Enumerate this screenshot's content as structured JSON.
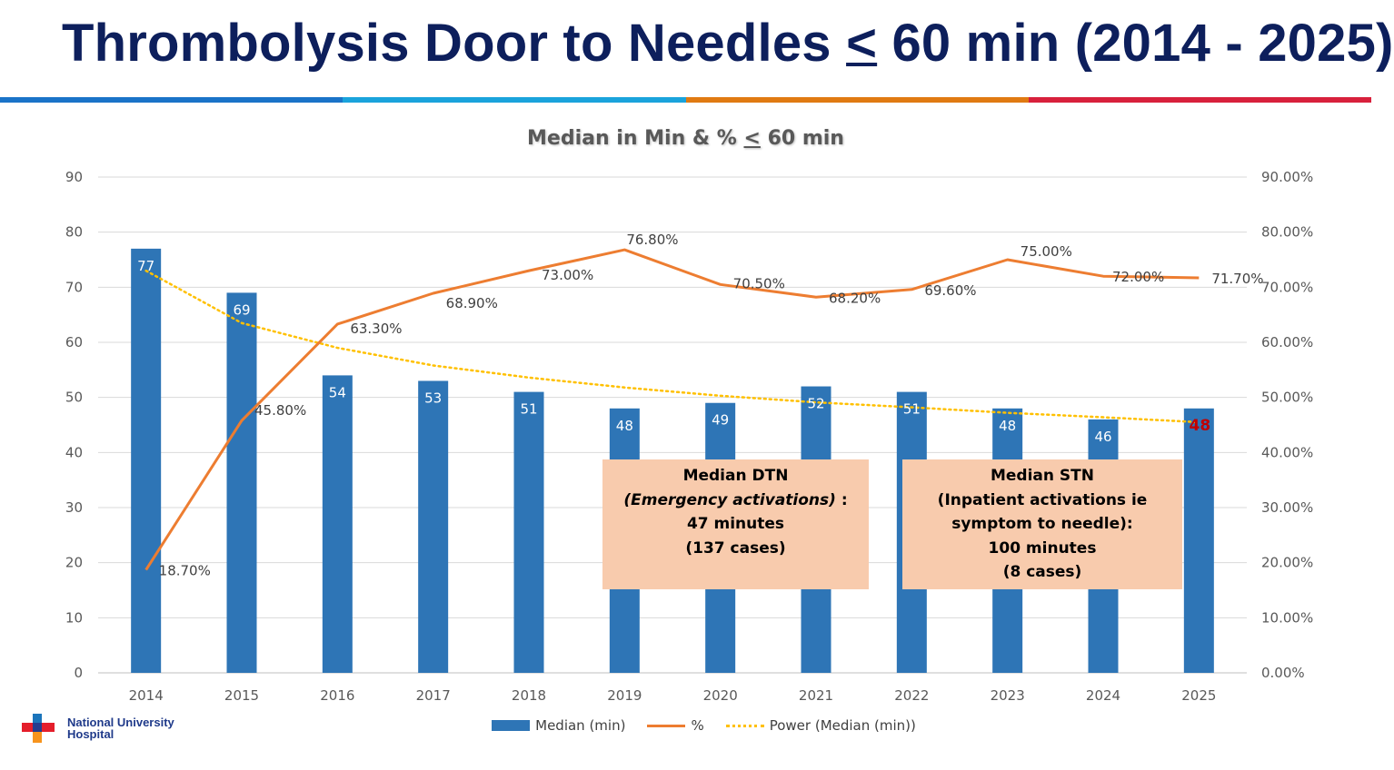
{
  "slide": {
    "title_before": "Thrombolysis Door to Needles ",
    "title_symbol": "<",
    "title_after": " 60 min (2014 - 2025)",
    "stripe_colors": [
      "#1a73c8",
      "#1aa3dc",
      "#e07a12",
      "#d8203c"
    ]
  },
  "chart_data": {
    "type": "bar",
    "title_before": "Median in Min & % ",
    "title_symbol": "<",
    "title_after": " 60 min",
    "categories": [
      "2014",
      "2015",
      "2016",
      "2017",
      "2018",
      "2019",
      "2020",
      "2021",
      "2022",
      "2023",
      "2024",
      "2025"
    ],
    "series": [
      {
        "name": "Median (min)",
        "type": "bar",
        "axis": "left",
        "color": "#2e75b6",
        "values": [
          77,
          69,
          54,
          53,
          51,
          48,
          49,
          52,
          51,
          48,
          46,
          48
        ],
        "labels": [
          "77",
          "69",
          "54",
          "53",
          "51",
          "48",
          "49",
          "52",
          "51",
          "48",
          "46",
          "48"
        ]
      },
      {
        "name": "%",
        "type": "line",
        "axis": "right",
        "color": "#ed7d31",
        "values": [
          18.7,
          45.8,
          63.3,
          68.9,
          73.0,
          76.8,
          70.5,
          68.2,
          69.6,
          75.0,
          72.0,
          71.7
        ],
        "labels": [
          "18.70%",
          "45.80%",
          "63.30%",
          "68.90%",
          "73.00%",
          "76.80%",
          "70.50%",
          "68.20%",
          "69.60%",
          "75.00%",
          "72.00%",
          "71.70%"
        ]
      },
      {
        "name": "Power (Median (min))",
        "type": "trendline-power",
        "axis": "left",
        "color": "#ffc000",
        "values": [
          73.0,
          63.5,
          59.0,
          55.8,
          53.6,
          51.8,
          50.3,
          49.1,
          48.2,
          47.2,
          46.4,
          45.5
        ]
      }
    ],
    "y_left": {
      "min": 0,
      "max": 90,
      "step": 10,
      "ticks": [
        "0",
        "10",
        "20",
        "30",
        "40",
        "50",
        "60",
        "70",
        "80",
        "90"
      ]
    },
    "y_right": {
      "min": 0,
      "max": 90,
      "step": 10,
      "ticks": [
        "0.00%",
        "10.00%",
        "20.00%",
        "30.00%",
        "40.00%",
        "50.00%",
        "60.00%",
        "70.00%",
        "80.00%",
        "90.00%"
      ]
    },
    "grid": true,
    "legend_position": "bottom",
    "last_bar_label_color": "#c00000"
  },
  "callouts": [
    {
      "line1": "Median DTN",
      "line2": "(Emergency activations)",
      "line2_suffix": " :",
      "line3": "47 minutes",
      "line4": "(137 cases)"
    },
    {
      "line1": "Median STN",
      "line2": "(Inpatient activations  ie",
      "line3": "symptom to needle):",
      "line4": "100 minutes",
      "line5": "(8 cases)"
    }
  ],
  "legend": [
    {
      "label": "Median (min)",
      "icon": "bar-swatch"
    },
    {
      "label": "%",
      "icon": "line-swatch"
    },
    {
      "label": "Power (Median (min))",
      "icon": "dotted-line-swatch"
    }
  ],
  "logo": {
    "line1": "National University",
    "line2": "Hospital",
    "icon": "nuh-cross-logo"
  }
}
